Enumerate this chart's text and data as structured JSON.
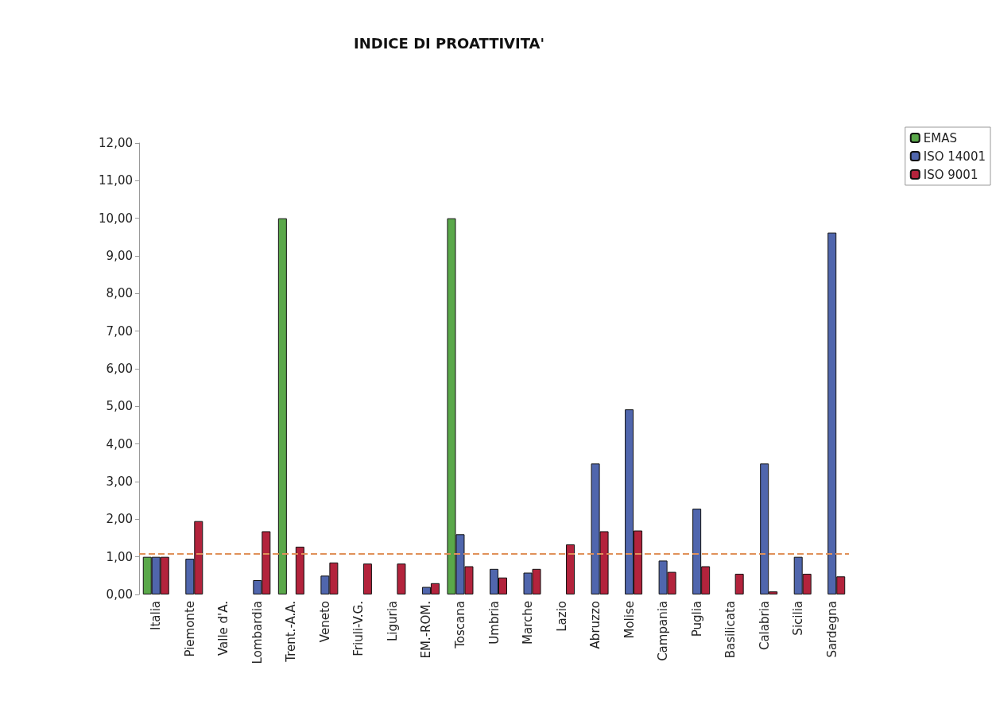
{
  "chart_data": {
    "type": "bar",
    "title": "INDICE DI PROATTIVITA'",
    "categories": [
      "Italia",
      "Piemonte",
      "Valle d'A.",
      "Lombardia",
      "Trent.-A.A.",
      "Veneto",
      "Friuli-V.G.",
      "Liguria",
      "EM.-ROM.",
      "Toscana",
      "Umbria",
      "Marche",
      "Lazio",
      "Abruzzo",
      "Molise",
      "Campania",
      "Puglia",
      "Basilicata",
      "Calabria",
      "Sicilia",
      "Sardegna"
    ],
    "series": [
      {
        "name": "EMAS",
        "color": "#5aa84a",
        "values": [
          1.0,
          null,
          null,
          null,
          10.0,
          null,
          null,
          null,
          null,
          10.0,
          null,
          null,
          null,
          null,
          null,
          null,
          null,
          null,
          null,
          null,
          null
        ]
      },
      {
        "name": "ISO 14001",
        "color": "#5066ad",
        "values": [
          1.0,
          0.95,
          null,
          0.38,
          null,
          0.5,
          null,
          null,
          0.2,
          1.6,
          0.68,
          0.58,
          null,
          3.48,
          4.92,
          0.9,
          2.28,
          null,
          3.48,
          1.0,
          9.62
        ]
      },
      {
        "name": "ISO 9001",
        "color": "#b3233c",
        "values": [
          1.0,
          1.95,
          null,
          1.68,
          1.27,
          0.85,
          0.82,
          0.82,
          0.3,
          0.75,
          0.45,
          0.68,
          1.33,
          1.68,
          1.7,
          0.6,
          0.75,
          0.55,
          0.08,
          0.55,
          0.48
        ]
      }
    ],
    "ylim": [
      0,
      12
    ],
    "yticks": [
      {
        "value": 0,
        "label": "0,00"
      },
      {
        "value": 1,
        "label": "1,00"
      },
      {
        "value": 2,
        "label": "2,00"
      },
      {
        "value": 3,
        "label": "3,00"
      },
      {
        "value": 4,
        "label": "4,00"
      },
      {
        "value": 5,
        "label": "5,00"
      },
      {
        "value": 6,
        "label": "6,00"
      },
      {
        "value": 7,
        "label": "7,00"
      },
      {
        "value": 8,
        "label": "8,00"
      },
      {
        "value": 9,
        "label": "9,00"
      },
      {
        "value": 10,
        "label": "10,00"
      },
      {
        "value": 11,
        "label": "11,00"
      },
      {
        "value": 12,
        "label": "12,00"
      }
    ],
    "ref_lines": [
      {
        "axis": "y",
        "value": 1.08,
        "label": null,
        "color": "#e0915a",
        "line_style": "dashed"
      }
    ],
    "grid": false,
    "legend": "top right"
  }
}
